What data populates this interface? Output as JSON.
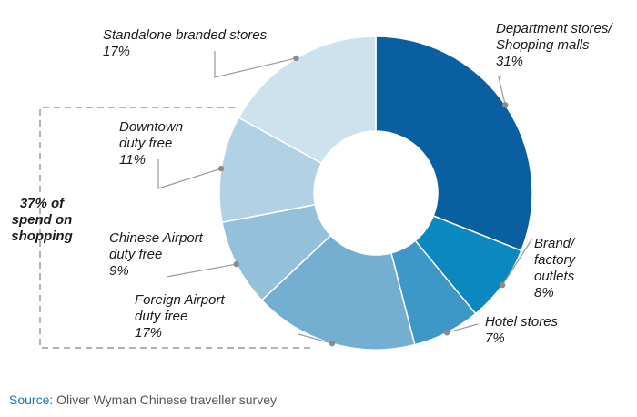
{
  "chart_data": {
    "type": "pie",
    "donut": true,
    "categories": [
      "Department stores/ Shopping malls",
      "Brand/ factory outlets",
      "Hotel stores",
      "Foreign Airport duty free",
      "Chinese Airport duty free",
      "Downtown duty free",
      "Standalone branded stores"
    ],
    "values": [
      31,
      8,
      7,
      17,
      9,
      11,
      17
    ],
    "unit": "%",
    "colors": [
      "#0a5fa0",
      "#0a88bf",
      "#3d97c8",
      "#74aed1",
      "#94c0da",
      "#b2d1e5",
      "#cde1ee"
    ],
    "labels": [
      {
        "lines": [
          "Department stores/",
          "Shopping malls"
        ],
        "value": "31%"
      },
      {
        "lines": [
          "Brand/",
          "factory",
          "outlets"
        ],
        "value": "8%"
      },
      {
        "lines": [
          "Hotel stores"
        ],
        "value": "7%"
      },
      {
        "lines": [
          "Foreign Airport",
          "duty free"
        ],
        "value": "17%"
      },
      {
        "lines": [
          "Chinese Airport",
          "duty free"
        ],
        "value": "9%"
      },
      {
        "lines": [
          "Downtown",
          "duty free"
        ],
        "value": "11%"
      },
      {
        "lines": [
          "Standalone branded stores"
        ],
        "value": "17%"
      }
    ],
    "callout": {
      "lines": [
        "37% of",
        "spend on",
        "shopping"
      ]
    }
  },
  "source": {
    "prefix": "Source:",
    "text": " Oliver Wyman Chinese traveller survey"
  }
}
